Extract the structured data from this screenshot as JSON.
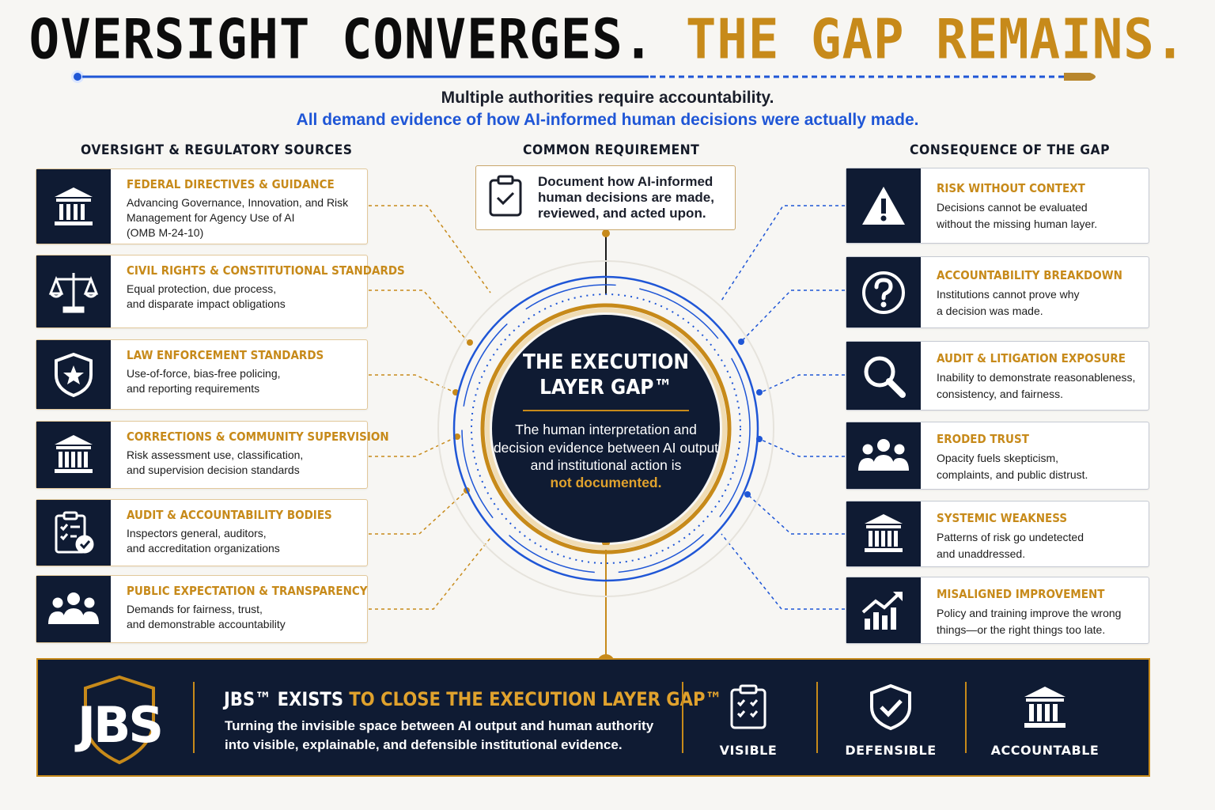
{
  "title": {
    "part1": "OVERSIGHT CONVERGES.",
    "part2": "THE GAP REMAINS."
  },
  "subtitle": {
    "line1": "Multiple authorities require accountability.",
    "line2": "All demand evidence of how AI-informed human decisions were actually made."
  },
  "columns": {
    "left": "OVERSIGHT & REGULATORY SOURCES",
    "center": "COMMON REQUIREMENT",
    "right": "CONSEQUENCE OF THE GAP"
  },
  "sources": [
    {
      "title": "FEDERAL DIRECTIVES & GUIDANCE",
      "desc": "Advancing Governance, Innovation, and Risk Management for Agency Use of AI",
      "desc2": "(OMB M-24-10)",
      "icon": "government-building-icon"
    },
    {
      "title": "CIVIL RIGHTS & CONSTITUTIONAL STANDARDS",
      "desc": "Equal protection, due process,",
      "desc2": "and disparate impact obligations",
      "icon": "scales-of-justice-icon"
    },
    {
      "title": "LAW ENFORCEMENT STANDARDS",
      "desc": "Use-of-force, bias-free policing,",
      "desc2": "and reporting requirements",
      "icon": "police-badge-icon"
    },
    {
      "title": "CORRECTIONS & COMMUNITY SUPERVISION",
      "desc": "Risk assessment use, classification,",
      "desc2": "and supervision decision standards",
      "icon": "institution-building-icon"
    },
    {
      "title": "AUDIT & ACCOUNTABILITY BODIES",
      "desc": "Inspectors general, auditors,",
      "desc2": "and accreditation organizations",
      "icon": "audit-clipboard-icon"
    },
    {
      "title": "PUBLIC EXPECTATION & TRANSPARENCY",
      "desc": "Demands for fairness, trust,",
      "desc2": "and demonstrable accountability",
      "icon": "people-group-icon"
    }
  ],
  "requirement": {
    "text": "Document how AI-informed human decisions are made, reviewed, and acted upon.",
    "icon": "checklist-clipboard-icon"
  },
  "core": {
    "title": "THE EXECUTION LAYER GAP™",
    "desc": "The human interpretation and decision evidence between AI output and institutional action is",
    "highlight": "not documented."
  },
  "consequences": [
    {
      "title": "RISK WITHOUT CONTEXT",
      "desc": "Decisions cannot be evaluated",
      "desc2": "without the missing human layer.",
      "icon": "warning-triangle-icon"
    },
    {
      "title": "ACCOUNTABILITY BREAKDOWN",
      "desc": "Institutions cannot prove why",
      "desc2": "a decision was made.",
      "icon": "question-circle-icon"
    },
    {
      "title": "AUDIT & LITIGATION EXPOSURE",
      "desc": "Inability to demonstrate reasonableness,",
      "desc2": "consistency, and fairness.",
      "icon": "magnifier-icon"
    },
    {
      "title": "ERODED TRUST",
      "desc": "Opacity fuels skepticism,",
      "desc2": "complaints, and public distrust.",
      "icon": "people-group-icon"
    },
    {
      "title": "SYSTEMIC WEAKNESS",
      "desc": "Patterns of risk go undetected",
      "desc2": "and unaddressed.",
      "icon": "government-building-icon"
    },
    {
      "title": "MISALIGNED IMPROVEMENT",
      "desc": "Policy and training improve the wrong",
      "desc2": "things—or the right things too late.",
      "icon": "rising-chart-icon"
    }
  ],
  "banner": {
    "logo": "JBS",
    "title_white": "JBS™  EXISTS ",
    "title_gold": "TO CLOSE THE EXECUTION LAYER GAP™",
    "line1": "Turning the invisible space between AI output and human authority",
    "line2": "into visible, explainable, and defensible institutional evidence.",
    "pillars": [
      {
        "label": "VISIBLE",
        "icon": "checklist-clipboard-icon"
      },
      {
        "label": "DEFENSIBLE",
        "icon": "shield-check-icon"
      },
      {
        "label": "ACCOUNTABLE",
        "icon": "government-building-icon"
      }
    ]
  },
  "colors": {
    "navy": "#0f1b33",
    "gold": "#c78a1a",
    "blue": "#1f56d6"
  }
}
